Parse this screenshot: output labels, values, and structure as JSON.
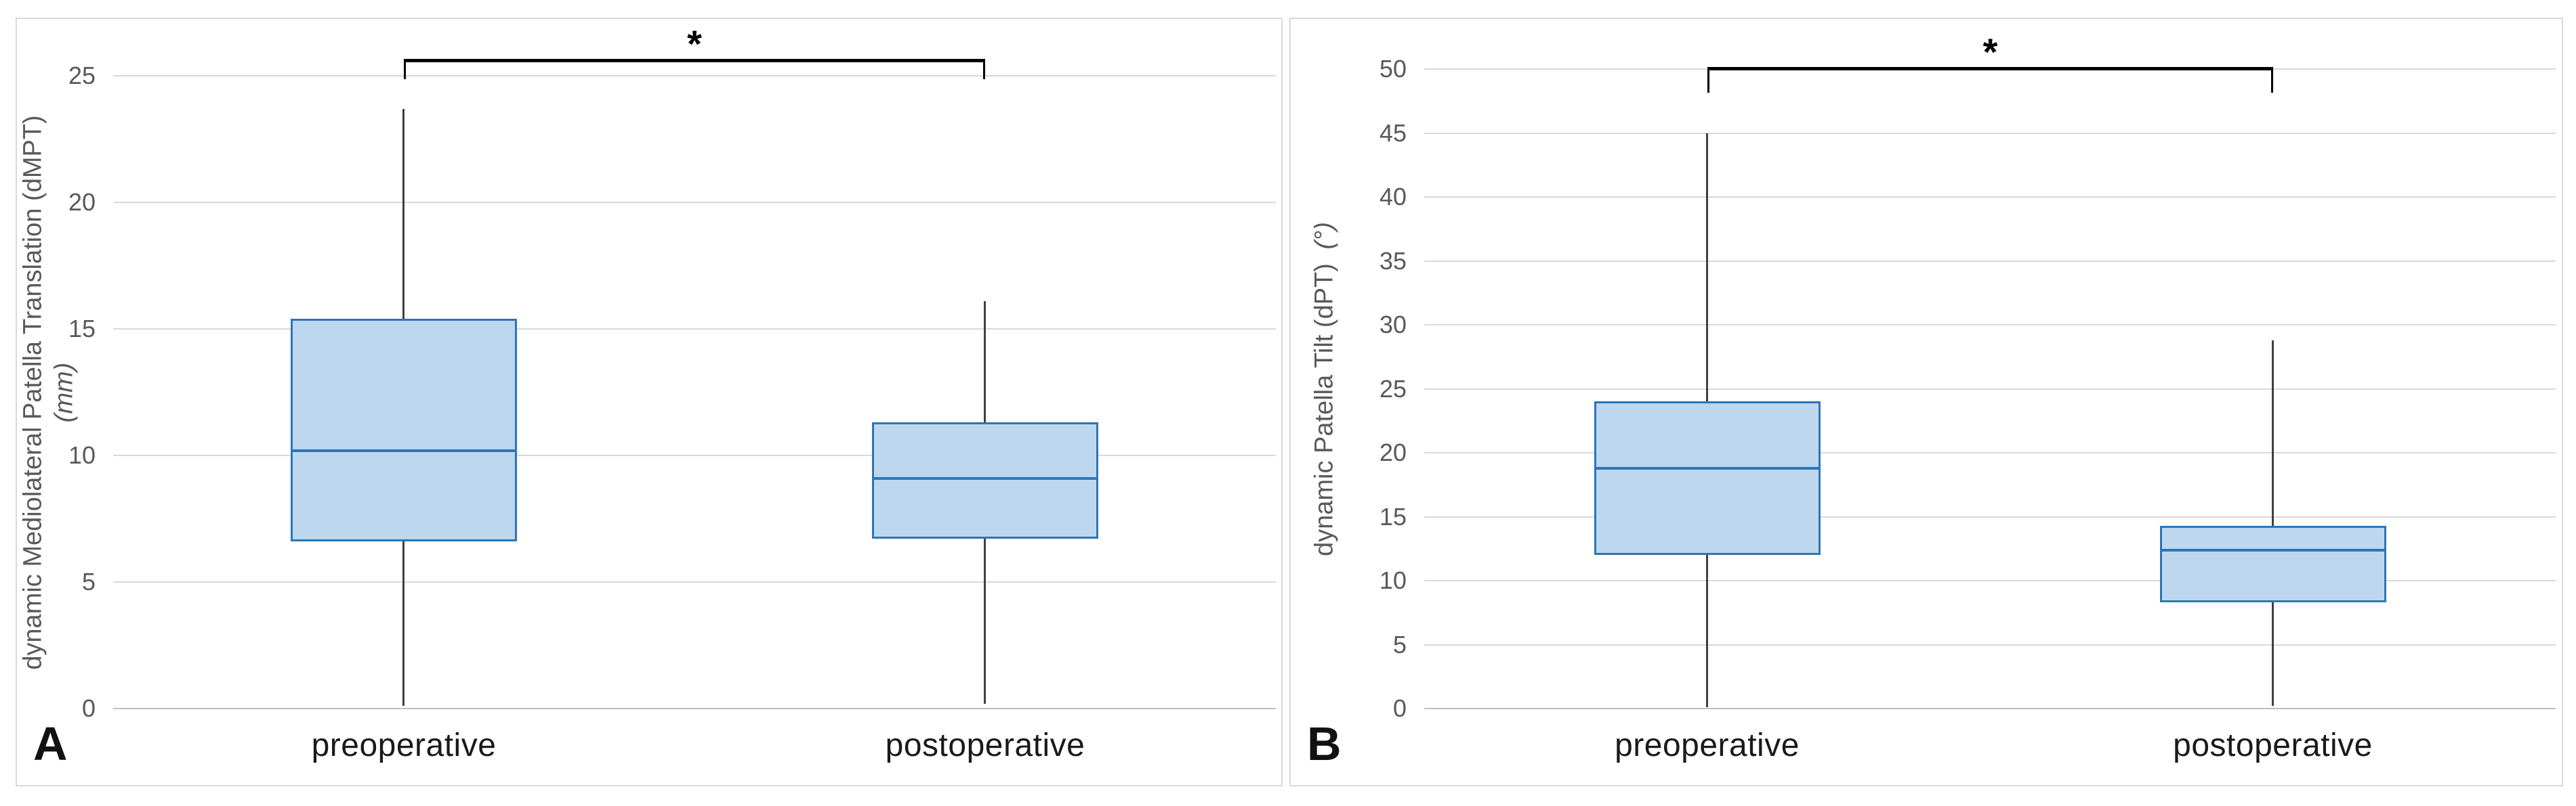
{
  "figure": {
    "colors": {
      "box_fill": "#bdd7ee",
      "box_border": "#2e75b6",
      "median_line": "#2e75b6",
      "whisker": "#404040",
      "gridline": "#d9d9d9",
      "zero_line": "#bfbfbf",
      "tick_label": "#595959",
      "axis_title": "#595959",
      "category_label": "#1a1a1a",
      "bracket": "#000000",
      "panel_border": "#d9d9d9",
      "background": "#ffffff"
    }
  },
  "chart_data": [
    {
      "type": "box",
      "panel_label": "A",
      "ylabel_main": "dynamic Mediolateral Patella Translation (dMPT)",
      "ylabel_unit": "(mm)",
      "ylabel_full": "dynamic Mediolateral Patella Translation (dMPT) (mm)",
      "ylim": [
        0,
        25
      ],
      "yticks": [
        0,
        5,
        10,
        15,
        20,
        25
      ],
      "categories": [
        "preoperative",
        "postoperative"
      ],
      "grid": true,
      "legend": false,
      "significance_marker": "*",
      "significance_between": [
        "preoperative",
        "postoperative"
      ],
      "series": [
        {
          "name": "preoperative",
          "whisker_min": 0.1,
          "q1": 6.6,
          "median": 10.2,
          "q3": 15.4,
          "whisker_max": 23.7
        },
        {
          "name": "postoperative",
          "whisker_min": 0.2,
          "q1": 6.7,
          "median": 9.1,
          "q3": 11.3,
          "whisker_max": 16.1
        }
      ]
    },
    {
      "type": "box",
      "panel_label": "B",
      "ylabel_main": "dynamic Patella Tilt (dPT)",
      "ylabel_unit": "(°)",
      "ylabel_full": "dynamic Patella Tilt (dPT) (°)",
      "ylim": [
        0,
        50
      ],
      "yticks": [
        0,
        5,
        10,
        15,
        20,
        25,
        30,
        35,
        40,
        45,
        50
      ],
      "categories": [
        "preoperative",
        "postoperative"
      ],
      "grid": true,
      "legend": false,
      "significance_marker": "*",
      "significance_between": [
        "preoperative",
        "postoperative"
      ],
      "series": [
        {
          "name": "preoperative",
          "whisker_min": 0.1,
          "q1": 12.0,
          "median": 18.8,
          "q3": 24.0,
          "whisker_max": 45.0
        },
        {
          "name": "postoperative",
          "whisker_min": 0.2,
          "q1": 8.3,
          "median": 12.4,
          "q3": 14.3,
          "whisker_max": 28.8
        }
      ]
    }
  ]
}
